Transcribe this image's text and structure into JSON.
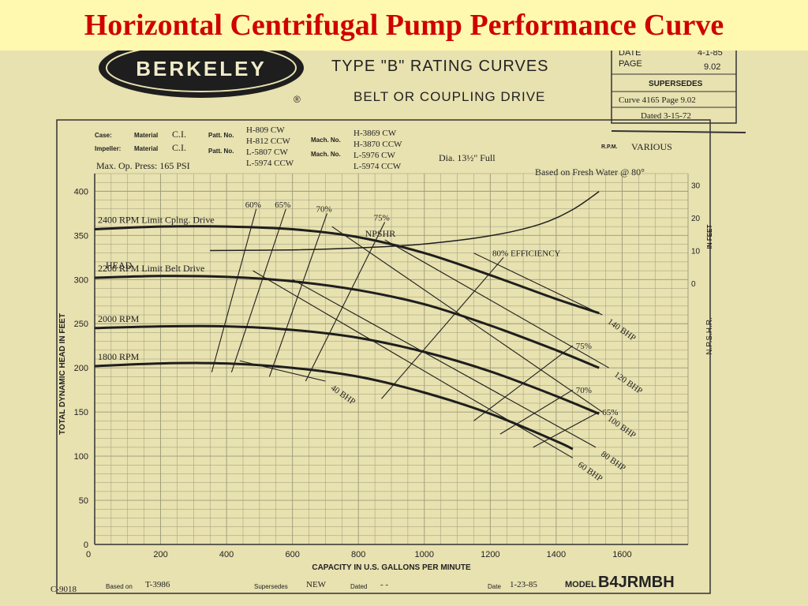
{
  "slide_title": "Horizontal Centrifugal Pump Performance Curve",
  "logo_text": "BERKELEY",
  "registered_mark": "®",
  "sheet_heading": {
    "line1": "TYPE \"B\" RATING CURVES",
    "line2": "BELT OR COUPLING DRIVE"
  },
  "info_box": {
    "date_label": "DATE",
    "date_value": "4-1-85",
    "page_label": "PAGE",
    "page_value": "9.02",
    "supersedes_label": "SUPERSEDES",
    "curve_ref": "Curve 4165  Page  9.02",
    "dated": "Dated 3-15-72"
  },
  "spec_block": {
    "case_label": "Case:",
    "impeller_label": "Impeller:",
    "material_label": "Material",
    "case_material": "C.I.",
    "impeller_material": "C.I.",
    "patt_label": "Patt. No.",
    "patt_numbers": [
      "H-809  CW",
      "H-812  CCW",
      "L-5807  CW",
      "L-5974  CCW"
    ],
    "mach_label": "Mach. No.",
    "mach_numbers": [
      "H-3869  CW",
      "H-3870  CCW",
      "L-5976  CW",
      "L-5974  CCW"
    ],
    "max_press": "Max. Op. Press: 165 PSI",
    "dia": "Dia. 13½\" Full",
    "rpm_label": "R.P.M.",
    "rpm_value": "VARIOUS",
    "basis": "Based on Fresh Water @ 80°"
  },
  "chart_data": {
    "type": "line",
    "xlabel": "CAPACITY IN U.S. GALLONS PER MINUTE",
    "ylabel": "TOTAL DYNAMIC HEAD IN FEET",
    "xlim": [
      0,
      1800
    ],
    "ylim": [
      0,
      420
    ],
    "x_ticks": [
      0,
      200,
      400,
      600,
      800,
      1000,
      1200,
      1400,
      1600
    ],
    "y_ticks": [
      0,
      50,
      100,
      150,
      200,
      250,
      300,
      350,
      400
    ],
    "y2_label": "N.P.S.H.R.",
    "y2_unit": "IN FEET",
    "y2_ticks": [
      0,
      10,
      20,
      30
    ],
    "head_label": "HEAD",
    "grid": true,
    "series": [
      {
        "name": "2400 RPM Limit Cplng. Drive",
        "x": [
          0,
          200,
          400,
          600,
          800,
          1000,
          1200,
          1400,
          1530
        ],
        "y": [
          357,
          360,
          360,
          357,
          348,
          330,
          305,
          278,
          262
        ]
      },
      {
        "name": "2200 RPM Limit Belt Drive",
        "x": [
          0,
          200,
          400,
          600,
          800,
          1000,
          1200,
          1400,
          1530
        ],
        "y": [
          302,
          304,
          303,
          298,
          288,
          272,
          248,
          220,
          200
        ]
      },
      {
        "name": "2000 RPM",
        "x": [
          0,
          200,
          400,
          600,
          800,
          1000,
          1200,
          1400,
          1530
        ],
        "y": [
          245,
          247,
          247,
          243,
          234,
          218,
          196,
          168,
          148
        ]
      },
      {
        "name": "1800 RPM",
        "x": [
          0,
          200,
          400,
          600,
          800,
          1000,
          1200,
          1400,
          1450
        ],
        "y": [
          202,
          205,
          205,
          200,
          190,
          172,
          148,
          117,
          108
        ]
      }
    ],
    "npshr": {
      "name": "NPSHR",
      "x": [
        350,
        600,
        800,
        1000,
        1200,
        1350,
        1450,
        1530
      ],
      "y": [
        10,
        10.2,
        10.8,
        12,
        14.5,
        18,
        22.5,
        28
      ]
    },
    "efficiency_lines": [
      {
        "label": "60%",
        "x": [
          355,
          490
        ],
        "y": [
          195,
          380
        ]
      },
      {
        "label": "65%",
        "x": [
          415,
          580
        ],
        "y": [
          195,
          380
        ]
      },
      {
        "label": "70%",
        "x": [
          530,
          705
        ],
        "y": [
          190,
          375
        ]
      },
      {
        "label": "75%",
        "x": [
          640,
          880
        ],
        "y": [
          185,
          365
        ]
      },
      {
        "label": "80% EFFICIENCY",
        "x": [
          870,
          1240
        ],
        "y": [
          165,
          325
        ]
      },
      {
        "label": "75%",
        "x": [
          1150,
          1450
        ],
        "y": [
          140,
          225
        ]
      },
      {
        "label": "70%",
        "x": [
          1230,
          1450
        ],
        "y": [
          125,
          175
        ]
      },
      {
        "label": "65%",
        "x": [
          1330,
          1530
        ],
        "y": [
          110,
          150
        ]
      }
    ],
    "bhp_lines": [
      {
        "label": "40 BHP",
        "x": [
          440,
          700
        ],
        "y": [
          208,
          185
        ]
      },
      {
        "label": "60 BHP",
        "x": [
          480,
          1450
        ],
        "y": [
          310,
          98
        ]
      },
      {
        "label": "80 BHP",
        "x": [
          600,
          1520
        ],
        "y": [
          300,
          110
        ]
      },
      {
        "label": "100 BHP",
        "x": [
          720,
          1540
        ],
        "y": [
          360,
          150
        ]
      },
      {
        "label": "120 BHP",
        "x": [
          880,
          1560
        ],
        "y": [
          345,
          200
        ]
      },
      {
        "label": "140 BHP",
        "x": [
          1150,
          1540
        ],
        "y": [
          330,
          260
        ]
      }
    ]
  },
  "footer": {
    "code": "C-9018",
    "based_on_label": "Based on",
    "based_on_value": "T-3986",
    "supersedes_label": "Supersedes",
    "supersedes_value": "NEW",
    "dated_label": "Dated",
    "dated_value": "- -",
    "date_label": "Date",
    "date_value": "1-23-85",
    "model_label": "MODEL",
    "model_value": "B4JRMBH"
  },
  "colors": {
    "title": "#d00000",
    "banner": "#fff9b0",
    "paper": "#e8e1b0",
    "grid": "#9a9a78",
    "curve": "#1e1e1e"
  }
}
